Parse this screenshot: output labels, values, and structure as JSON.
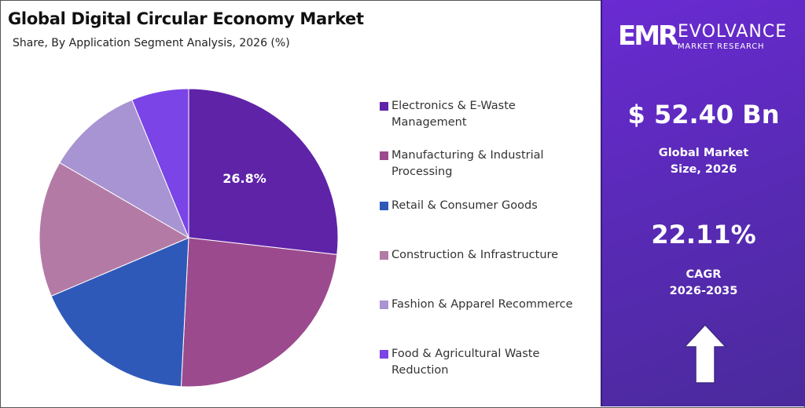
{
  "title": "Global Digital Circular Economy Market",
  "subtitle": "Share, By Application Segment Analysis, 2026 (%)",
  "chart_data": {
    "type": "pie",
    "start_angle_deg": 0,
    "direction": "clockwise",
    "slices": [
      {
        "name": "Electronics & E-Waste Management",
        "value": 26.8,
        "color": "#5f23a8",
        "label": "26.8%"
      },
      {
        "name": "Manufacturing & Industrial Processing",
        "value": 24.0,
        "color": "#9c4a8e",
        "label": ""
      },
      {
        "name": "Retail & Consumer Goods",
        "value": 17.8,
        "color": "#2f59b8",
        "label": ""
      },
      {
        "name": "Construction & Infrastructure",
        "value": 14.8,
        "color": "#b47aa6",
        "label": ""
      },
      {
        "name": "Fashion & Apparel Recommerce",
        "value": 10.4,
        "color": "#a894d2",
        "label": ""
      },
      {
        "name": "Food & Agricultural Waste Reduction",
        "value": 6.2,
        "color": "#7a44e6",
        "label": ""
      }
    ]
  },
  "legend": [
    {
      "lines": [
        "Electronics & E-Waste",
        "Management"
      ],
      "color": "#5f23a8"
    },
    {
      "lines": [
        "Manufacturing & Industrial",
        "Processing"
      ],
      "color": "#9c4a8e"
    },
    {
      "lines": [
        "Retail & Consumer Goods"
      ],
      "color": "#2f59b8"
    },
    {
      "lines": [
        "Construction & Infrastructure"
      ],
      "color": "#b47aa6"
    },
    {
      "lines": [
        "Fashion & Apparel Recommerce"
      ],
      "color": "#a894d2"
    },
    {
      "lines": [
        "Food & Agricultural Waste",
        "Reduction"
      ],
      "color": "#7a44e6"
    }
  ],
  "panel": {
    "logo_mark": "EMR",
    "logo_name": "EVOLVANCE",
    "logo_sub": "MARKET RESEARCH",
    "market_size": "$ 52.40 Bn",
    "market_size_label": [
      "Global Market",
      "Size, 2026"
    ],
    "cagr": "22.11%",
    "cagr_label": [
      "CAGR",
      "2026-2035"
    ],
    "arrow_icon": "up-arrow-icon"
  }
}
